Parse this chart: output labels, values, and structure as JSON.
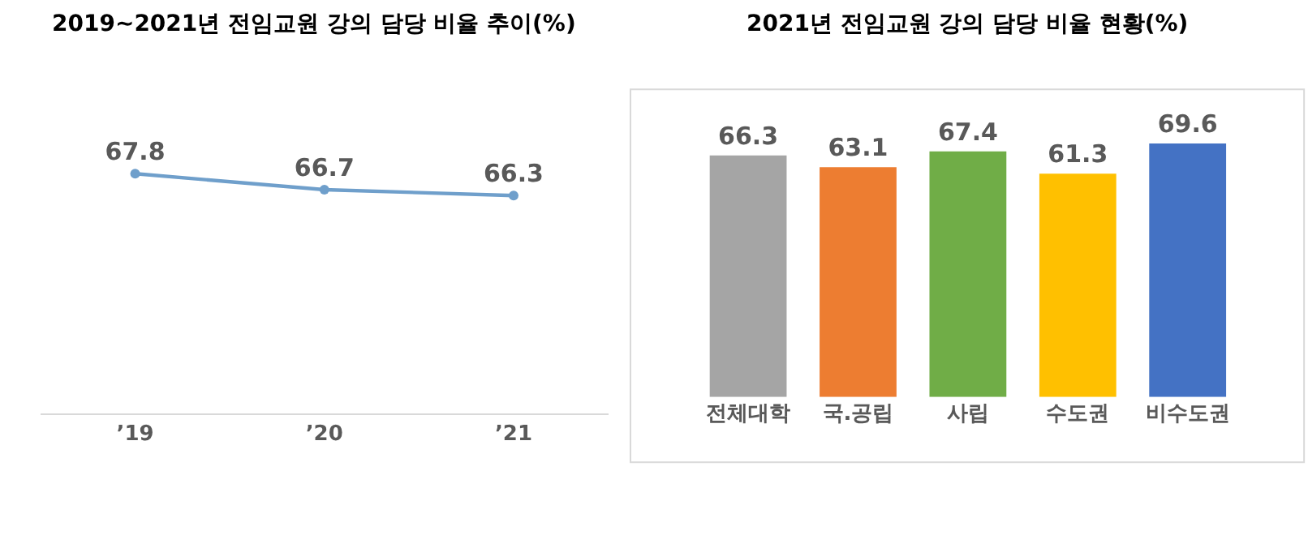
{
  "chart_data": [
    {
      "type": "line",
      "title": "2019~2021년 전임교원 강의 담당 비율 추이(%)",
      "categories": [
        "’19",
        "’20",
        "’21"
      ],
      "values": [
        67.8,
        66.7,
        66.3
      ],
      "color": "#6f9fcb",
      "marker": "circle",
      "data_labels": true,
      "tick_labels": "x"
    },
    {
      "type": "bar",
      "title": "2021년 전임교원 강의 담당 비율 현황(%)",
      "categories": [
        "전체대학",
        "국.공립",
        "사립",
        "수도권",
        "비수도권"
      ],
      "values": [
        66.3,
        63.1,
        67.4,
        61.3,
        69.6
      ],
      "colors": [
        "#a5a5a5",
        "#ed7d31",
        "#70ad47",
        "#ffc000",
        "#4472c4"
      ],
      "data_labels": true,
      "tick_labels": "x"
    }
  ]
}
